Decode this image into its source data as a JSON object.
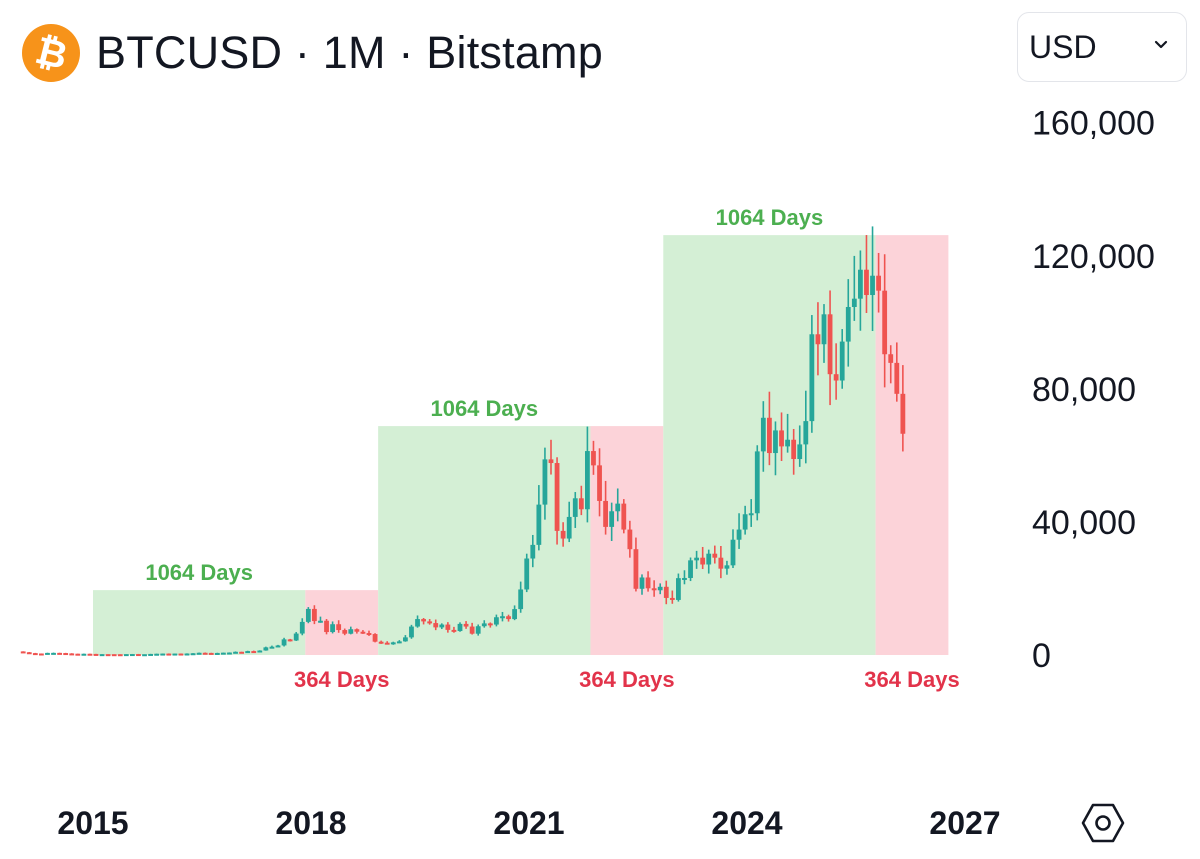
{
  "header": {
    "coin_icon": "bitcoin-icon",
    "title": "BTCUSD · 1M · Bitstamp"
  },
  "currency_select": {
    "value": "USD",
    "icon": "chevron-down-icon"
  },
  "settings_icon": "hexagon-settings-icon",
  "colors": {
    "up": "#26a69a",
    "down": "#ef5350",
    "bull_zone": "#d4efd5",
    "bear_zone": "#fcd3d9",
    "bull_label": "#4caf50",
    "bear_label": "#e2334a"
  },
  "chart_data": {
    "type": "candlestick",
    "title": "BTCUSD · 1M · Bitstamp",
    "y_axis": {
      "side": "right",
      "ylim": [
        0,
        165000
      ],
      "ticks": [
        0,
        40000,
        80000,
        120000,
        160000
      ],
      "tick_labels": [
        "0",
        "40,000",
        "80,000",
        "120,000",
        "160,000"
      ]
    },
    "x_axis": {
      "ticks": [
        "2015",
        "2018",
        "2021",
        "2024",
        "2027"
      ]
    },
    "grid": false,
    "zones": [
      {
        "type": "bull",
        "label": "1064 Days",
        "start": "2015-01",
        "end": "2017-12",
        "top": 19500
      },
      {
        "type": "bear",
        "label": "364 Days",
        "start": "2017-12",
        "end": "2018-12",
        "top": 19500
      },
      {
        "type": "bull",
        "label": "1064 Days",
        "start": "2018-12",
        "end": "2021-11",
        "top": 68800
      },
      {
        "type": "bear",
        "label": "364 Days",
        "start": "2021-11",
        "end": "2022-11",
        "top": 68800
      },
      {
        "type": "bull",
        "label": "1064 Days",
        "start": "2022-11",
        "end": "2025-10",
        "top": 126200
      },
      {
        "type": "bear",
        "label": "364 Days",
        "start": "2025-10",
        "end": "2026-10",
        "top": 126200
      }
    ],
    "series": [
      {
        "start": "2014-01",
        "close": [
          830,
          570,
          450,
          440,
          630,
          640,
          590,
          480,
          390,
          340,
          380,
          320,
          220,
          255,
          245,
          235,
          230,
          265,
          285,
          230,
          235,
          315,
          380,
          430,
          370,
          435,
          415,
          450,
          530,
          670,
          625,
          575,
          610,
          700,
          740,
          965,
          960,
          1180,
          1070,
          1350,
          2300,
          2500,
          2870,
          4700,
          4350,
          6450,
          9950,
          13850,
          10200,
          10300,
          6900,
          9250,
          7500,
          6400,
          7750,
          7000,
          6600,
          6300,
          4000,
          3700,
          3450,
          3800,
          4100,
          5300,
          8550,
          10800,
          10100,
          9600,
          8300,
          9150,
          7550,
          7200,
          9350,
          8550,
          6400,
          8650,
          9500,
          9150,
          11350,
          11650,
          10800,
          13800,
          19700,
          29000,
          33100,
          45200,
          58800,
          57700,
          37300,
          35000,
          41500,
          47100,
          43800,
          61300,
          57000,
          46300,
          38500,
          43200,
          45500,
          37700,
          31800,
          19900,
          23300,
          20050,
          19450,
          20500,
          17150,
          16550,
          23100,
          23150,
          28450,
          29250,
          27200,
          30450,
          29250,
          25950,
          26950,
          34650,
          37700,
          42300,
          42600,
          61200,
          71300,
          60700,
          67500,
          62700,
          64700,
          58900,
          63300,
          70300,
          96400,
          93400,
          102400,
          84400,
          82500,
          94200,
          104600,
          107100,
          115800,
          108200,
          114000,
          109500,
          90400,
          87800,
          78500,
          66500
        ]
      }
    ]
  }
}
